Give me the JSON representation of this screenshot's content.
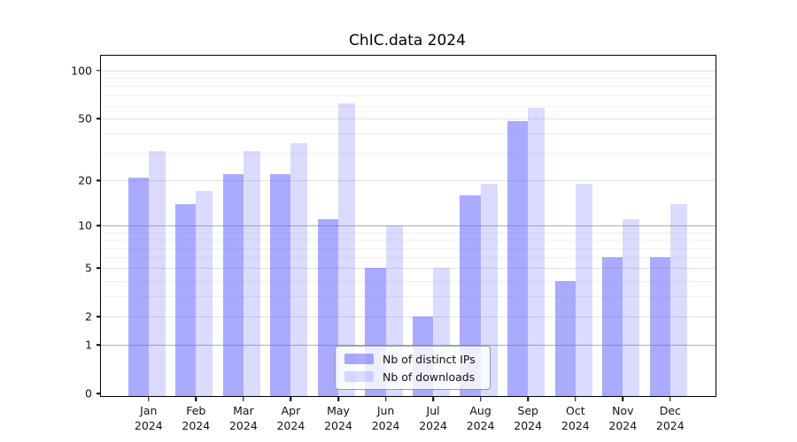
{
  "title": "ChIC.data 2024",
  "year_label": "2024",
  "colors": {
    "ips_bar": "#a9a9fb",
    "downloads_bar": "#dcdcfb",
    "ips_bar_rgba": "rgba(100,100,255,0.55)",
    "downloads_bar_rgba": "rgba(100,100,255,0.23)",
    "axis": "#000000",
    "grid_strong": "#b0b0b0",
    "grid_medium": "#e0e0e0",
    "grid_light": "#f0f0f0"
  },
  "legend": {
    "items": [
      {
        "label": "Nb of distinct IPs",
        "swatch": "rgba(100,100,255,0.55)"
      },
      {
        "label": "Nb of downloads",
        "swatch": "rgba(100,100,255,0.23)"
      }
    ]
  },
  "chart_data": {
    "type": "bar",
    "title": "ChIC.data 2024",
    "categories": [
      "Jan",
      "Feb",
      "Mar",
      "Apr",
      "May",
      "Jun",
      "Jul",
      "Aug",
      "Sep",
      "Oct",
      "Nov",
      "Dec"
    ],
    "category_year": "2024",
    "series": [
      {
        "name": "Nb of distinct IPs",
        "values": [
          21,
          14,
          22,
          22,
          11,
          5,
          2,
          16,
          48,
          4,
          6,
          6
        ]
      },
      {
        "name": "Nb of downloads",
        "values": [
          31,
          17,
          31,
          35,
          62,
          10,
          5,
          19,
          58,
          19,
          11,
          14
        ]
      }
    ],
    "xlabel": "",
    "ylabel": "",
    "y_scale": "log1p",
    "ylim": [
      0,
      110
    ],
    "y_tick_values": [
      0,
      1,
      2,
      5,
      10,
      20,
      50,
      100
    ],
    "y_gridlines_strong": [
      1,
      10
    ],
    "y_gridlines_medium": [
      2,
      5,
      20,
      50,
      100
    ],
    "y_gridlines_light": [
      3,
      4,
      6,
      7,
      8,
      9,
      30,
      40,
      60,
      70,
      80,
      90
    ],
    "grid": true,
    "legend_position": "bottom-center"
  }
}
